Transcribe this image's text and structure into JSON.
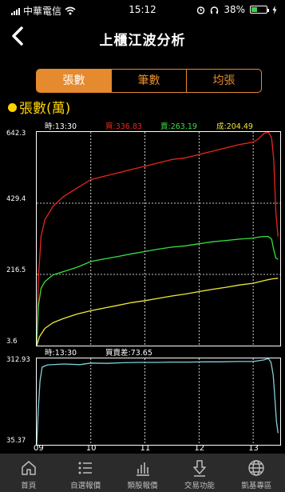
{
  "status_bar": {
    "carrier": "中華電信",
    "time": "15:12",
    "battery": "38%",
    "battery_level": 0.38
  },
  "nav": {
    "title": "上櫃江波分析"
  },
  "tabs": [
    {
      "label": "張數",
      "active": true
    },
    {
      "label": "筆數",
      "active": false
    },
    {
      "label": "均張",
      "active": false
    }
  ],
  "metric_title": "張數(萬)",
  "info": {
    "time": "時:13:30",
    "buy": "買:336.83",
    "sell": "賣:263.19",
    "deal": "成:204.49"
  },
  "info2": {
    "time": "時:13:30",
    "diff": "買賣差:73.65"
  },
  "bottom_nav": [
    {
      "label": "首頁",
      "icon": "home-icon"
    },
    {
      "label": "自選報價",
      "icon": "watchlist-icon"
    },
    {
      "label": "類股報價",
      "icon": "sector-chart-icon"
    },
    {
      "label": "交易功能",
      "icon": "trade-icon"
    },
    {
      "label": "凱基專區",
      "icon": "globe-icon"
    }
  ],
  "colors": {
    "buy": "#e8261d",
    "sell": "#38e040",
    "deal": "#f0e83a",
    "diff": "#7fd0d8",
    "accent": "#e58a2e"
  },
  "chart_data": [
    {
      "type": "line",
      "title": "張數(萬)",
      "x_ticks": [
        "09",
        "10",
        "11",
        "12",
        "13"
      ],
      "y_ticks": [
        3.6,
        216.5,
        429.4,
        642.3
      ],
      "y_tick_labels": [
        "3.6",
        "216.5",
        "429.4",
        "642.3"
      ],
      "ylim": [
        3.6,
        642.3
      ],
      "xlim": [
        0,
        4.5
      ],
      "grid": true,
      "series": [
        {
          "name": "買",
          "color": "#e8261d",
          "points": [
            [
              0,
              3.6
            ],
            [
              0.03,
              200
            ],
            [
              0.08,
              330
            ],
            [
              0.15,
              380
            ],
            [
              0.3,
              420
            ],
            [
              0.5,
              450
            ],
            [
              0.75,
              475
            ],
            [
              1.0,
              500
            ],
            [
              1.25,
              510
            ],
            [
              1.5,
              520
            ],
            [
              1.75,
              530
            ],
            [
              2.0,
              540
            ],
            [
              2.25,
              550
            ],
            [
              2.5,
              560
            ],
            [
              2.75,
              565
            ],
            [
              3.0,
              575
            ],
            [
              3.25,
              585
            ],
            [
              3.5,
              595
            ],
            [
              3.75,
              605
            ],
            [
              4.0,
              612
            ],
            [
              4.1,
              622
            ],
            [
              4.2,
              638
            ],
            [
              4.28,
              642
            ],
            [
              4.34,
              625
            ],
            [
              4.38,
              560
            ],
            [
              4.42,
              400
            ],
            [
              4.46,
              330
            ]
          ]
        },
        {
          "name": "賣",
          "color": "#38e040",
          "points": [
            [
              0,
              3.6
            ],
            [
              0.03,
              120
            ],
            [
              0.08,
              175
            ],
            [
              0.15,
              195
            ],
            [
              0.3,
              215
            ],
            [
              0.5,
              225
            ],
            [
              0.75,
              238
            ],
            [
              1.0,
              255
            ],
            [
              1.25,
              263
            ],
            [
              1.5,
              270
            ],
            [
              1.75,
              278
            ],
            [
              2.0,
              285
            ],
            [
              2.25,
              292
            ],
            [
              2.5,
              298
            ],
            [
              2.75,
              302
            ],
            [
              3.0,
              308
            ],
            [
              3.25,
              314
            ],
            [
              3.5,
              318
            ],
            [
              3.75,
              322
            ],
            [
              4.0,
              325
            ],
            [
              4.1,
              328
            ],
            [
              4.2,
              330
            ],
            [
              4.28,
              330
            ],
            [
              4.34,
              322
            ],
            [
              4.38,
              290
            ],
            [
              4.42,
              265
            ],
            [
              4.46,
              262
            ]
          ]
        },
        {
          "name": "成",
          "color": "#f0e83a",
          "points": [
            [
              0,
              3.6
            ],
            [
              0.05,
              30
            ],
            [
              0.15,
              55
            ],
            [
              0.3,
              72
            ],
            [
              0.5,
              85
            ],
            [
              0.75,
              98
            ],
            [
              1.0,
              108
            ],
            [
              1.25,
              116
            ],
            [
              1.5,
              124
            ],
            [
              1.75,
              132
            ],
            [
              2.0,
              138
            ],
            [
              2.25,
              145
            ],
            [
              2.5,
              152
            ],
            [
              2.75,
              158
            ],
            [
              3.0,
              165
            ],
            [
              3.25,
              172
            ],
            [
              3.5,
              178
            ],
            [
              3.75,
              185
            ],
            [
              4.0,
              190
            ],
            [
              4.2,
              198
            ],
            [
              4.35,
              203
            ],
            [
              4.46,
              205
            ]
          ]
        }
      ]
    },
    {
      "type": "line",
      "x_ticks": [
        "09",
        "10",
        "11",
        "12",
        "13"
      ],
      "y_ticks": [
        35.37,
        312.93
      ],
      "y_tick_labels": [
        "35.37",
        "312.93"
      ],
      "ylim": [
        35.37,
        312.93
      ],
      "xlim": [
        0,
        4.5
      ],
      "grid": true,
      "series": [
        {
          "name": "買賣差",
          "color": "#7fd0d8",
          "points": [
            [
              0,
              35.37
            ],
            [
              0.03,
              150
            ],
            [
              0.06,
              240
            ],
            [
              0.1,
              285
            ],
            [
              0.2,
              292
            ],
            [
              0.5,
              295
            ],
            [
              0.8,
              293
            ],
            [
              1.0,
              298
            ],
            [
              1.3,
              297
            ],
            [
              1.6,
              299
            ],
            [
              1.9,
              300
            ],
            [
              2.2,
              300
            ],
            [
              2.5,
              301
            ],
            [
              2.8,
              301
            ],
            [
              3.1,
              302
            ],
            [
              3.4,
              302
            ],
            [
              3.7,
              303
            ],
            [
              4.0,
              303
            ],
            [
              4.2,
              308
            ],
            [
              4.28,
              312.93
            ],
            [
              4.33,
              300
            ],
            [
              4.37,
              260
            ],
            [
              4.4,
              190
            ],
            [
              4.43,
              110
            ],
            [
              4.46,
              73
            ]
          ]
        }
      ]
    }
  ]
}
